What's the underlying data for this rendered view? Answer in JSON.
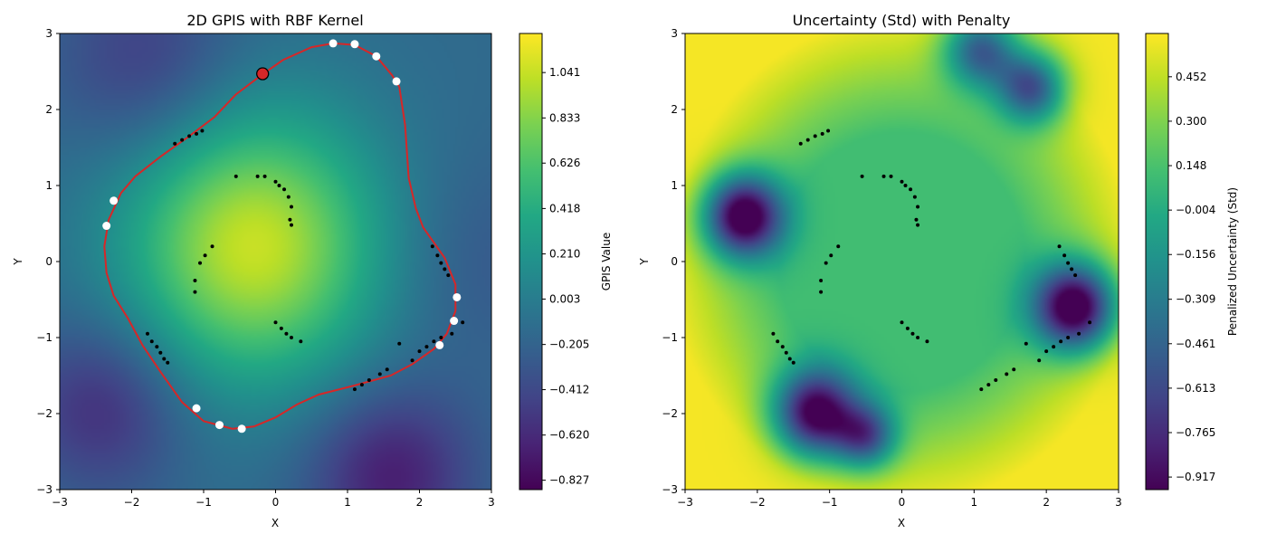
{
  "chart_data": [
    {
      "type": "heatmap",
      "title": "2D GPIS with RBF Kernel",
      "xlabel": "X",
      "ylabel": "Y",
      "xlim": [
        -3,
        3
      ],
      "ylim": [
        -3,
        3
      ],
      "x_ticks": [
        "−3",
        "−2",
        "−1",
        "0",
        "1",
        "2",
        "3"
      ],
      "y_ticks": [
        "−3",
        "−2",
        "−1",
        "0",
        "1",
        "2",
        "3"
      ],
      "colorbar": {
        "label": "GPIS Value",
        "range": [
          -0.87,
          1.22
        ],
        "ticks": [
          "−0.827",
          "−0.620",
          "−0.412",
          "−0.205",
          "0.003",
          "0.210",
          "0.418",
          "0.626",
          "0.833",
          "1.041"
        ],
        "tick_values": [
          -0.827,
          -0.62,
          -0.412,
          -0.205,
          0.003,
          0.21,
          0.418,
          0.626,
          0.833,
          1.041
        ]
      },
      "colormap": "viridis",
      "contour_color": "#d62728",
      "contour": [
        [
          -0.2,
          2.45
        ],
        [
          0.1,
          2.65
        ],
        [
          0.5,
          2.82
        ],
        [
          0.8,
          2.87
        ],
        [
          1.1,
          2.85
        ],
        [
          1.4,
          2.7
        ],
        [
          1.62,
          2.45
        ],
        [
          1.72,
          2.3
        ],
        [
          1.8,
          1.8
        ],
        [
          1.85,
          1.1
        ],
        [
          1.95,
          0.7
        ],
        [
          2.05,
          0.45
        ],
        [
          2.2,
          0.25
        ],
        [
          2.35,
          0.05
        ],
        [
          2.5,
          -0.3
        ],
        [
          2.5,
          -0.65
        ],
        [
          2.38,
          -0.95
        ],
        [
          2.2,
          -1.15
        ],
        [
          1.9,
          -1.35
        ],
        [
          1.6,
          -1.5
        ],
        [
          1.1,
          -1.63
        ],
        [
          0.6,
          -1.75
        ],
        [
          0.3,
          -1.88
        ],
        [
          0.0,
          -2.05
        ],
        [
          -0.3,
          -2.17
        ],
        [
          -0.6,
          -2.2
        ],
        [
          -1.0,
          -2.1
        ],
        [
          -1.3,
          -1.85
        ],
        [
          -1.6,
          -1.45
        ],
        [
          -1.85,
          -1.1
        ],
        [
          -2.05,
          -0.75
        ],
        [
          -2.25,
          -0.45
        ],
        [
          -2.35,
          -0.15
        ],
        [
          -2.38,
          0.2
        ],
        [
          -2.32,
          0.55
        ],
        [
          -2.15,
          0.9
        ],
        [
          -1.95,
          1.12
        ],
        [
          -1.6,
          1.38
        ],
        [
          -1.2,
          1.65
        ],
        [
          -0.85,
          1.9
        ],
        [
          -0.55,
          2.2
        ],
        [
          -0.2,
          2.45
        ]
      ],
      "observed_points": [
        [
          -1.4,
          1.55
        ],
        [
          -1.3,
          1.6
        ],
        [
          -1.2,
          1.65
        ],
        [
          -1.1,
          1.68
        ],
        [
          -1.02,
          1.72
        ],
        [
          -1.12,
          -0.4
        ],
        [
          -1.12,
          -0.25
        ],
        [
          -1.05,
          -0.02
        ],
        [
          -0.98,
          0.08
        ],
        [
          -0.88,
          0.2
        ],
        [
          -0.55,
          1.12
        ],
        [
          -0.25,
          1.12
        ],
        [
          -0.15,
          1.12
        ],
        [
          0.0,
          1.05
        ],
        [
          0.05,
          1.0
        ],
        [
          0.12,
          0.95
        ],
        [
          0.18,
          0.85
        ],
        [
          0.22,
          0.72
        ],
        [
          0.2,
          0.55
        ],
        [
          0.22,
          0.48
        ],
        [
          0.0,
          -0.8
        ],
        [
          0.08,
          -0.88
        ],
        [
          0.15,
          -0.95
        ],
        [
          0.22,
          -1.0
        ],
        [
          0.35,
          -1.05
        ],
        [
          -1.78,
          -0.95
        ],
        [
          -1.72,
          -1.05
        ],
        [
          -1.65,
          -1.12
        ],
        [
          -1.6,
          -1.2
        ],
        [
          -1.55,
          -1.28
        ],
        [
          -1.5,
          -1.33
        ],
        [
          1.1,
          -1.68
        ],
        [
          1.2,
          -1.62
        ],
        [
          1.3,
          -1.56
        ],
        [
          1.45,
          -1.48
        ],
        [
          1.55,
          -1.42
        ],
        [
          1.72,
          -1.08
        ],
        [
          1.9,
          -1.3
        ],
        [
          2.0,
          -1.18
        ],
        [
          2.1,
          -1.12
        ],
        [
          2.2,
          -1.05
        ],
        [
          2.3,
          -1.0
        ],
        [
          2.45,
          -0.95
        ],
        [
          2.6,
          -0.8
        ],
        [
          2.18,
          0.2
        ],
        [
          2.25,
          0.08
        ],
        [
          2.3,
          -0.02
        ],
        [
          2.35,
          -0.1
        ],
        [
          2.4,
          -0.18
        ]
      ],
      "inducing_points": [
        [
          0.8,
          2.87
        ],
        [
          1.1,
          2.86
        ],
        [
          1.4,
          2.7
        ],
        [
          1.68,
          2.37
        ],
        [
          -2.25,
          0.8
        ],
        [
          -2.35,
          0.47
        ],
        [
          2.52,
          -0.47
        ],
        [
          2.48,
          -0.78
        ],
        [
          2.28,
          -1.1
        ],
        [
          -1.1,
          -1.93
        ],
        [
          -0.78,
          -2.15
        ],
        [
          -0.47,
          -2.2
        ]
      ],
      "highlight_point": [
        -0.18,
        2.47
      ],
      "field_centers": [
        {
          "x": -0.3,
          "y": 0.2,
          "w": 1.2,
          "s": 1.25
        },
        {
          "x": -2.4,
          "y": -1.9,
          "w": -0.45,
          "s": 0.8
        },
        {
          "x": 1.6,
          "y": -2.8,
          "w": -0.55,
          "s": 0.8
        },
        {
          "x": -1.8,
          "y": 2.6,
          "w": -0.35,
          "s": 0.9
        },
        {
          "x": 2.8,
          "y": 0.0,
          "w": -0.15,
          "s": 1.0
        }
      ]
    },
    {
      "type": "heatmap",
      "title": "Uncertainty (Std) with Penalty",
      "xlabel": "X",
      "ylabel": "Y",
      "xlim": [
        -3,
        3
      ],
      "ylim": [
        -3,
        3
      ],
      "x_ticks": [
        "−3",
        "−2",
        "−1",
        "0",
        "1",
        "2",
        "3"
      ],
      "y_ticks": [
        "−3",
        "−2",
        "−1",
        "0",
        "1",
        "2",
        "3"
      ],
      "colorbar": {
        "label": "Penalized Uncertainty (Std)",
        "range": [
          -0.96,
          0.6
        ],
        "ticks": [
          "−0.917",
          "−0.765",
          "−0.613",
          "−0.461",
          "−0.309",
          "−0.156",
          "−0.004",
          "0.148",
          "0.300",
          "0.452"
        ],
        "tick_values": [
          -0.917,
          -0.765,
          -0.613,
          -0.461,
          -0.309,
          -0.156,
          -0.004,
          0.148,
          0.3,
          0.452
        ]
      },
      "colormap": "viridis",
      "baseline": 0.58,
      "inner_level": 0.12,
      "low_regions": [
        {
          "x": -2.2,
          "y": 0.6,
          "w": 1.45,
          "s": 0.38
        },
        {
          "x": -1.2,
          "y": -2.0,
          "w": 1.35,
          "s": 0.4
        },
        {
          "x": -0.5,
          "y": -2.3,
          "w": 0.9,
          "s": 0.3
        },
        {
          "x": 2.4,
          "y": -0.6,
          "w": 1.5,
          "s": 0.4
        },
        {
          "x": 1.1,
          "y": 2.8,
          "w": 1.0,
          "s": 0.36
        },
        {
          "x": 1.8,
          "y": 2.3,
          "w": 1.05,
          "s": 0.34
        }
      ]
    }
  ]
}
